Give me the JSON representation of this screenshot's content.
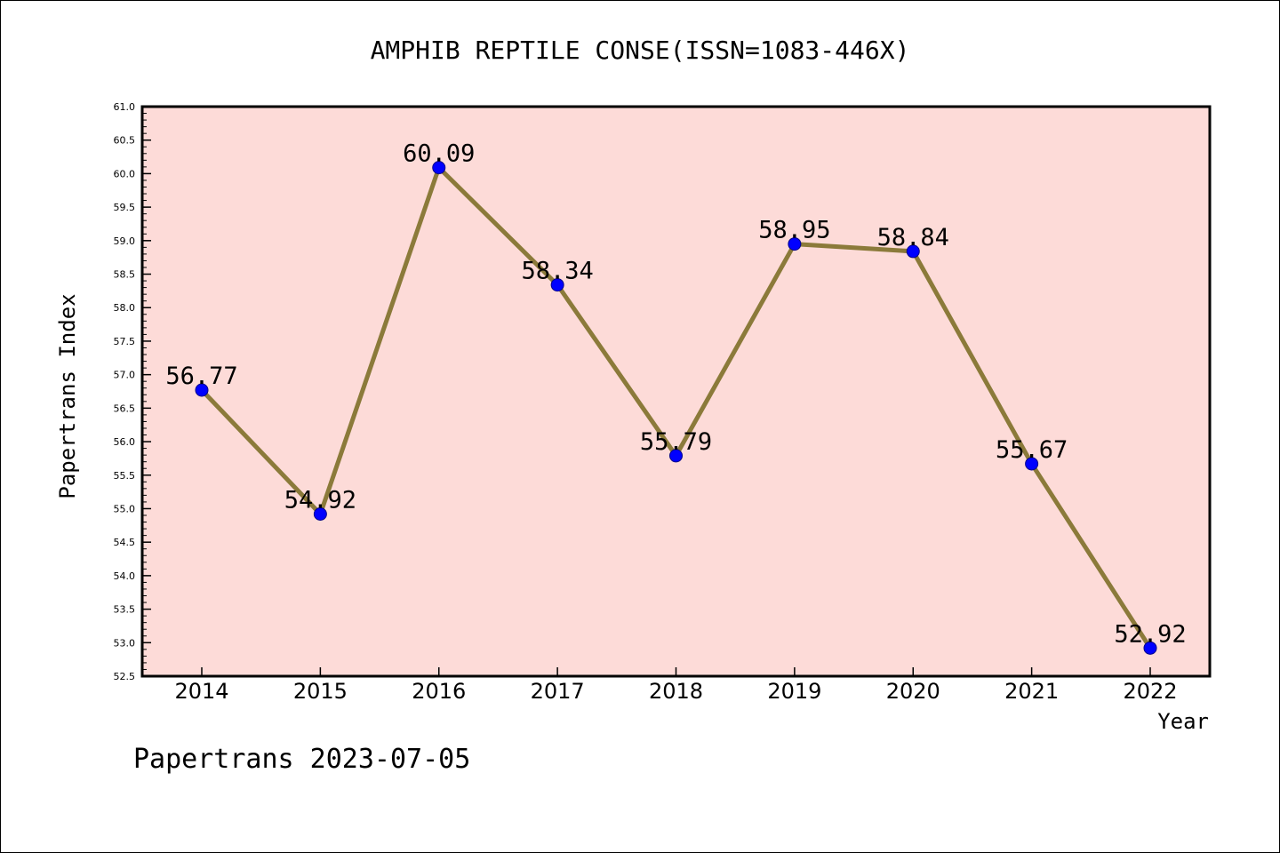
{
  "chart_data": {
    "type": "line",
    "title": "AMPHIB REPTILE CONSE(ISSN=1083-446X)",
    "xlabel": "Year",
    "ylabel": "Papertrans Index",
    "footer": "Papertrans 2023-07-05",
    "categories": [
      "2014",
      "2015",
      "2016",
      "2017",
      "2018",
      "2019",
      "2020",
      "2021",
      "2022"
    ],
    "series": [
      {
        "values": [
          56.77,
          54.92,
          60.09,
          58.34,
          55.79,
          58.95,
          58.84,
          55.67,
          52.92
        ],
        "data_labels": [
          "56.77",
          "54.92",
          "60.09",
          "58.34",
          "55.79",
          "58.95",
          "58.84",
          "55.67",
          "52.92"
        ]
      }
    ],
    "ylim": [
      52.5,
      61.0
    ],
    "yticks": [
      "52.5",
      "53.0",
      "53.5",
      "54.0",
      "54.5",
      "55.0",
      "55.5",
      "56.0",
      "56.5",
      "57.0",
      "57.5",
      "58.0",
      "58.5",
      "59.0",
      "59.5",
      "60.0",
      "60.5",
      "61.0"
    ],
    "grid": false,
    "legend": "none",
    "colors": {
      "plot_background": "#fddbd8",
      "line": "#8b7a3a",
      "marker": "#0000ff",
      "axis": "#000000"
    }
  }
}
